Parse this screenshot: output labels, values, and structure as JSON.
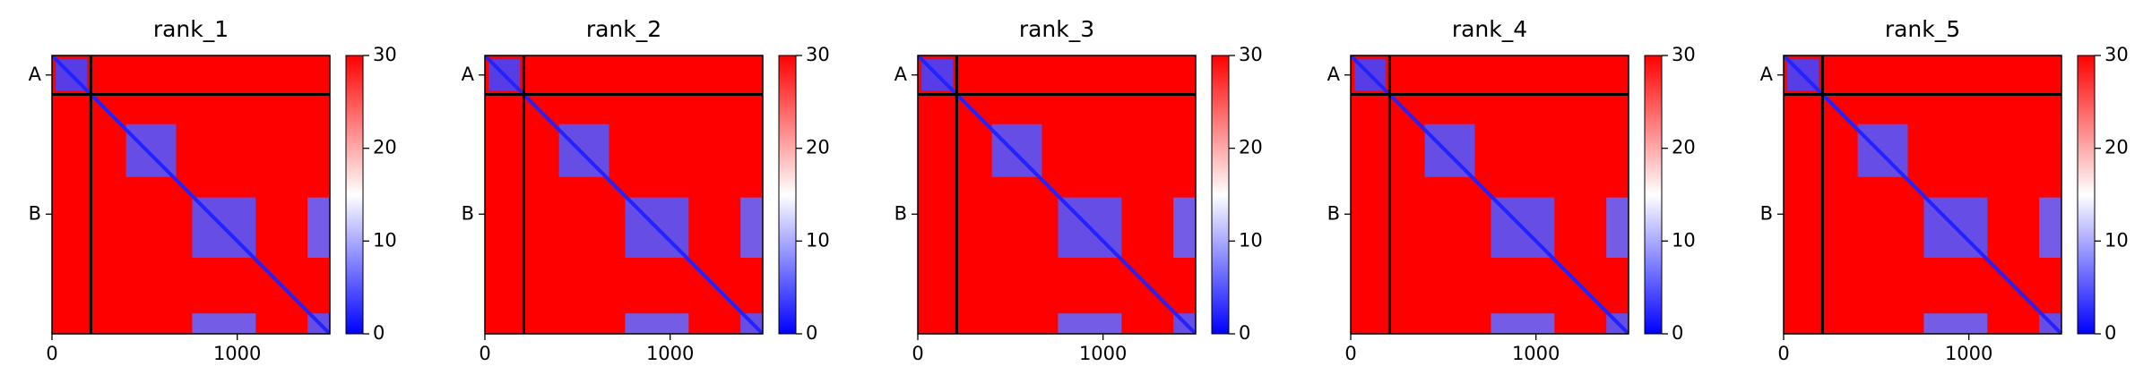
{
  "chart_data": [
    {
      "type": "heatmap",
      "title": "rank_1",
      "xlim": [
        0,
        1500
      ],
      "xticks": [
        0,
        1000
      ],
      "ylim": [
        1500,
        0
      ],
      "yticks": [
        {
          "value": 105,
          "label": "A"
        },
        {
          "value": 855,
          "label": "B"
        }
      ],
      "chain_breaks": [
        210
      ],
      "clim": [
        0,
        30
      ],
      "cticks": [
        0,
        10,
        20,
        30
      ],
      "colormap": [
        "#0000ff",
        "#ffffff",
        "#ff0000"
      ],
      "background_value": 30,
      "diagonal_value": 2,
      "regions": [
        {
          "x": [
            20,
            190
          ],
          "y": [
            20,
            190
          ],
          "value": 4
        },
        {
          "x": [
            400,
            670
          ],
          "y": [
            370,
            655
          ],
          "value": 5
        },
        {
          "x": [
            757,
            1100
          ],
          "y": [
            765,
            1090
          ],
          "value": 5
        },
        {
          "x": [
            1380,
            1500
          ],
          "y": [
            765,
            1090
          ],
          "value": 6
        },
        {
          "x": [
            757,
            1100
          ],
          "y": [
            1390,
            1500
          ],
          "value": 6
        },
        {
          "x": [
            1380,
            1500
          ],
          "y": [
            1390,
            1500
          ],
          "value": 5
        }
      ]
    },
    {
      "type": "heatmap",
      "title": "rank_2",
      "xlim": [
        0,
        1500
      ],
      "xticks": [
        0,
        1000
      ],
      "ylim": [
        1500,
        0
      ],
      "yticks": [
        {
          "value": 105,
          "label": "A"
        },
        {
          "value": 855,
          "label": "B"
        }
      ],
      "chain_breaks": [
        210
      ],
      "clim": [
        0,
        30
      ],
      "cticks": [
        0,
        10,
        20,
        30
      ],
      "colormap": [
        "#0000ff",
        "#ffffff",
        "#ff0000"
      ],
      "background_value": 30,
      "diagonal_value": 2,
      "regions": [
        {
          "x": [
            20,
            190
          ],
          "y": [
            20,
            190
          ],
          "value": 4
        },
        {
          "x": [
            400,
            670
          ],
          "y": [
            370,
            655
          ],
          "value": 5
        },
        {
          "x": [
            757,
            1100
          ],
          "y": [
            765,
            1090
          ],
          "value": 5
        },
        {
          "x": [
            1380,
            1500
          ],
          "y": [
            765,
            1090
          ],
          "value": 6
        },
        {
          "x": [
            757,
            1100
          ],
          "y": [
            1390,
            1500
          ],
          "value": 6
        },
        {
          "x": [
            1380,
            1500
          ],
          "y": [
            1390,
            1500
          ],
          "value": 5
        }
      ]
    },
    {
      "type": "heatmap",
      "title": "rank_3",
      "xlim": [
        0,
        1500
      ],
      "xticks": [
        0,
        1000
      ],
      "ylim": [
        1500,
        0
      ],
      "yticks": [
        {
          "value": 105,
          "label": "A"
        },
        {
          "value": 855,
          "label": "B"
        }
      ],
      "chain_breaks": [
        210
      ],
      "clim": [
        0,
        30
      ],
      "cticks": [
        0,
        10,
        20,
        30
      ],
      "colormap": [
        "#0000ff",
        "#ffffff",
        "#ff0000"
      ],
      "background_value": 30,
      "diagonal_value": 2,
      "regions": [
        {
          "x": [
            20,
            190
          ],
          "y": [
            20,
            190
          ],
          "value": 4
        },
        {
          "x": [
            400,
            670
          ],
          "y": [
            370,
            655
          ],
          "value": 5
        },
        {
          "x": [
            757,
            1100
          ],
          "y": [
            765,
            1090
          ],
          "value": 5
        },
        {
          "x": [
            1380,
            1500
          ],
          "y": [
            765,
            1090
          ],
          "value": 6
        },
        {
          "x": [
            757,
            1100
          ],
          "y": [
            1390,
            1500
          ],
          "value": 6
        },
        {
          "x": [
            1380,
            1500
          ],
          "y": [
            1390,
            1500
          ],
          "value": 5
        }
      ]
    },
    {
      "type": "heatmap",
      "title": "rank_4",
      "xlim": [
        0,
        1500
      ],
      "xticks": [
        0,
        1000
      ],
      "ylim": [
        1500,
        0
      ],
      "yticks": [
        {
          "value": 105,
          "label": "A"
        },
        {
          "value": 855,
          "label": "B"
        }
      ],
      "chain_breaks": [
        210
      ],
      "clim": [
        0,
        30
      ],
      "cticks": [
        0,
        10,
        20,
        30
      ],
      "colormap": [
        "#0000ff",
        "#ffffff",
        "#ff0000"
      ],
      "background_value": 30,
      "diagonal_value": 2,
      "regions": [
        {
          "x": [
            20,
            190
          ],
          "y": [
            20,
            190
          ],
          "value": 4
        },
        {
          "x": [
            400,
            670
          ],
          "y": [
            370,
            655
          ],
          "value": 5
        },
        {
          "x": [
            757,
            1100
          ],
          "y": [
            765,
            1090
          ],
          "value": 5
        },
        {
          "x": [
            1380,
            1500
          ],
          "y": [
            765,
            1090
          ],
          "value": 6
        },
        {
          "x": [
            757,
            1100
          ],
          "y": [
            1390,
            1500
          ],
          "value": 6
        },
        {
          "x": [
            1380,
            1500
          ],
          "y": [
            1390,
            1500
          ],
          "value": 5
        }
      ]
    },
    {
      "type": "heatmap",
      "title": "rank_5",
      "xlim": [
        0,
        1500
      ],
      "xticks": [
        0,
        1000
      ],
      "ylim": [
        1500,
        0
      ],
      "yticks": [
        {
          "value": 105,
          "label": "A"
        },
        {
          "value": 855,
          "label": "B"
        }
      ],
      "chain_breaks": [
        210
      ],
      "clim": [
        0,
        30
      ],
      "cticks": [
        0,
        10,
        20,
        30
      ],
      "colormap": [
        "#0000ff",
        "#ffffff",
        "#ff0000"
      ],
      "background_value": 30,
      "diagonal_value": 2,
      "regions": [
        {
          "x": [
            20,
            190
          ],
          "y": [
            20,
            190
          ],
          "value": 4
        },
        {
          "x": [
            400,
            670
          ],
          "y": [
            370,
            655
          ],
          "value": 5
        },
        {
          "x": [
            757,
            1100
          ],
          "y": [
            765,
            1090
          ],
          "value": 5
        },
        {
          "x": [
            1380,
            1500
          ],
          "y": [
            765,
            1090
          ],
          "value": 6
        },
        {
          "x": [
            757,
            1100
          ],
          "y": [
            1390,
            1500
          ],
          "value": 6
        },
        {
          "x": [
            1380,
            1500
          ],
          "y": [
            1390,
            1500
          ],
          "value": 5
        }
      ]
    }
  ]
}
